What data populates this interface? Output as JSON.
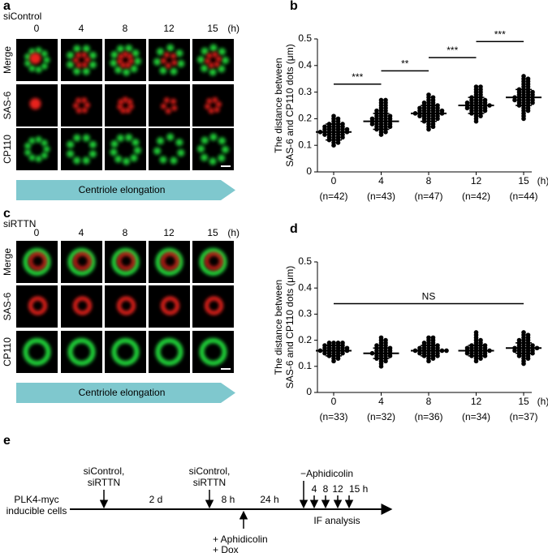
{
  "panel_a": {
    "label": "a",
    "condition": "siControl",
    "timepoints": [
      "0",
      "4",
      "8",
      "12",
      "15"
    ],
    "unit": "(h)",
    "rows": [
      "Merge",
      "SAS-6",
      "CP110"
    ],
    "arrow": "Centriole elongation"
  },
  "panel_c": {
    "label": "c",
    "condition": "siRTTN",
    "timepoints": [
      "0",
      "4",
      "8",
      "12",
      "15"
    ],
    "unit": "(h)",
    "rows": [
      "Merge",
      "SAS-6",
      "CP110"
    ],
    "arrow": "Centriole elongation"
  },
  "chart_data": [
    {
      "panel_label": "b",
      "type": "strip",
      "ylabel": [
        "The distance between",
        "SAS-6 and CP110 dots (μm)"
      ],
      "categories": [
        "0",
        "4",
        "8",
        "12",
        "15"
      ],
      "n_labels": [
        "(n=42)",
        "(n=43)",
        "(n=47)",
        "(n=42)",
        "(n=44)"
      ],
      "x_unit": "(h)",
      "values": [
        [
          0.1,
          0.11,
          0.11,
          0.12,
          0.12,
          0.12,
          0.13,
          0.13,
          0.13,
          0.13,
          0.14,
          0.14,
          0.14,
          0.14,
          0.14,
          0.15,
          0.15,
          0.15,
          0.15,
          0.15,
          0.15,
          0.15,
          0.16,
          0.16,
          0.16,
          0.16,
          0.16,
          0.16,
          0.17,
          0.17,
          0.17,
          0.17,
          0.17,
          0.18,
          0.18,
          0.18,
          0.18,
          0.19,
          0.19,
          0.2,
          0.2,
          0.21
        ],
        [
          0.14,
          0.15,
          0.15,
          0.16,
          0.16,
          0.16,
          0.17,
          0.17,
          0.17,
          0.17,
          0.18,
          0.18,
          0.18,
          0.18,
          0.18,
          0.19,
          0.19,
          0.19,
          0.19,
          0.19,
          0.2,
          0.2,
          0.2,
          0.2,
          0.2,
          0.21,
          0.21,
          0.21,
          0.21,
          0.22,
          0.22,
          0.22,
          0.23,
          0.23,
          0.23,
          0.24,
          0.24,
          0.25,
          0.25,
          0.26,
          0.26,
          0.27,
          0.27
        ],
        [
          0.16,
          0.17,
          0.17,
          0.18,
          0.18,
          0.19,
          0.19,
          0.19,
          0.2,
          0.2,
          0.2,
          0.2,
          0.21,
          0.21,
          0.21,
          0.21,
          0.21,
          0.22,
          0.22,
          0.22,
          0.22,
          0.22,
          0.22,
          0.22,
          0.23,
          0.23,
          0.23,
          0.23,
          0.23,
          0.23,
          0.24,
          0.24,
          0.24,
          0.24,
          0.24,
          0.25,
          0.25,
          0.25,
          0.25,
          0.26,
          0.26,
          0.26,
          0.27,
          0.27,
          0.28,
          0.28,
          0.29
        ],
        [
          0.19,
          0.2,
          0.21,
          0.21,
          0.22,
          0.22,
          0.22,
          0.23,
          0.23,
          0.23,
          0.23,
          0.24,
          0.24,
          0.24,
          0.24,
          0.24,
          0.25,
          0.25,
          0.25,
          0.25,
          0.25,
          0.25,
          0.26,
          0.26,
          0.26,
          0.26,
          0.26,
          0.27,
          0.27,
          0.27,
          0.27,
          0.28,
          0.28,
          0.28,
          0.29,
          0.29,
          0.3,
          0.3,
          0.31,
          0.31,
          0.32,
          0.32
        ],
        [
          0.2,
          0.21,
          0.22,
          0.23,
          0.23,
          0.24,
          0.24,
          0.25,
          0.25,
          0.25,
          0.26,
          0.26,
          0.26,
          0.26,
          0.27,
          0.27,
          0.27,
          0.27,
          0.27,
          0.28,
          0.28,
          0.28,
          0.28,
          0.28,
          0.29,
          0.29,
          0.29,
          0.29,
          0.3,
          0.3,
          0.3,
          0.3,
          0.31,
          0.31,
          0.31,
          0.32,
          0.32,
          0.33,
          0.33,
          0.34,
          0.34,
          0.35,
          0.35,
          0.36
        ]
      ],
      "means": [
        0.15,
        0.19,
        0.22,
        0.25,
        0.28
      ],
      "sds": [
        0.03,
        0.03,
        0.03,
        0.03,
        0.03
      ],
      "ylim": [
        0,
        0.5
      ],
      "yticks": [
        0,
        0.1,
        0.2,
        0.3,
        0.4,
        0.5
      ],
      "point_color": "#000000",
      "significance": [
        {
          "from": "0",
          "to": "4",
          "y": 0.33,
          "label": "***"
        },
        {
          "from": "4",
          "to": "8",
          "y": 0.38,
          "label": "**"
        },
        {
          "from": "8",
          "to": "12",
          "y": 0.43,
          "label": "***"
        },
        {
          "from": "12",
          "to": "15",
          "y": 0.49,
          "label": "***"
        }
      ]
    },
    {
      "panel_label": "d",
      "type": "strip",
      "ylabel": [
        "The distance between",
        "SAS-6 and CP110 dots (μm)"
      ],
      "categories": [
        "0",
        "4",
        "8",
        "12",
        "15"
      ],
      "n_labels": [
        "(n=33)",
        "(n=32)",
        "(n=36)",
        "(n=34)",
        "(n=37)"
      ],
      "x_unit": "(h)",
      "values": [
        [
          0.12,
          0.13,
          0.13,
          0.14,
          0.14,
          0.14,
          0.15,
          0.15,
          0.15,
          0.15,
          0.15,
          0.16,
          0.16,
          0.16,
          0.16,
          0.16,
          0.16,
          0.16,
          0.17,
          0.17,
          0.17,
          0.17,
          0.17,
          0.17,
          0.18,
          0.18,
          0.18,
          0.18,
          0.18,
          0.19,
          0.19,
          0.19,
          0.19
        ],
        [
          0.1,
          0.11,
          0.12,
          0.12,
          0.13,
          0.13,
          0.13,
          0.14,
          0.14,
          0.14,
          0.14,
          0.15,
          0.15,
          0.15,
          0.15,
          0.15,
          0.16,
          0.16,
          0.16,
          0.16,
          0.17,
          0.17,
          0.17,
          0.17,
          0.18,
          0.18,
          0.18,
          0.19,
          0.19,
          0.2,
          0.2,
          0.21
        ],
        [
          0.12,
          0.13,
          0.13,
          0.14,
          0.14,
          0.14,
          0.15,
          0.15,
          0.15,
          0.15,
          0.15,
          0.16,
          0.16,
          0.16,
          0.16,
          0.16,
          0.16,
          0.16,
          0.17,
          0.17,
          0.17,
          0.17,
          0.17,
          0.18,
          0.18,
          0.18,
          0.18,
          0.19,
          0.19,
          0.19,
          0.2,
          0.2,
          0.21,
          0.21,
          0.14,
          0.16
        ],
        [
          0.12,
          0.13,
          0.13,
          0.14,
          0.14,
          0.14,
          0.15,
          0.15,
          0.15,
          0.15,
          0.15,
          0.16,
          0.16,
          0.16,
          0.16,
          0.16,
          0.16,
          0.17,
          0.17,
          0.17,
          0.17,
          0.17,
          0.18,
          0.18,
          0.18,
          0.18,
          0.19,
          0.19,
          0.2,
          0.2,
          0.21,
          0.22,
          0.23,
          0.14
        ],
        [
          0.11,
          0.12,
          0.13,
          0.13,
          0.14,
          0.14,
          0.14,
          0.15,
          0.15,
          0.15,
          0.15,
          0.16,
          0.16,
          0.16,
          0.16,
          0.16,
          0.17,
          0.17,
          0.17,
          0.17,
          0.17,
          0.17,
          0.18,
          0.18,
          0.18,
          0.18,
          0.19,
          0.19,
          0.19,
          0.2,
          0.2,
          0.2,
          0.21,
          0.21,
          0.22,
          0.22,
          0.23
        ]
      ],
      "means": [
        0.16,
        0.15,
        0.16,
        0.16,
        0.17
      ],
      "sds": [
        0.02,
        0.02,
        0.02,
        0.02,
        0.02
      ],
      "ylim": [
        0,
        0.5
      ],
      "yticks": [
        0,
        0.1,
        0.2,
        0.3,
        0.4,
        0.5
      ],
      "point_color": "#000000",
      "significance": [
        {
          "from": "0",
          "to": "15",
          "y": 0.34,
          "label": "NS"
        }
      ]
    }
  ],
  "panel_e": {
    "label": "e",
    "cells": [
      "PLK4-myc",
      "inducible cells"
    ],
    "transfection_1": [
      "siControl,",
      "siRTTN"
    ],
    "interval_1": "2 d",
    "transfection_2": [
      "siControl,",
      "siRTTN"
    ],
    "interval_2": "8 h",
    "treatment": [
      "+ Aphidicolin",
      "+ Dox"
    ],
    "interval_3": "24 h",
    "release": "−Aphidicolin",
    "timepoints": [
      "4",
      "8",
      "12",
      "15 h"
    ],
    "readout": "IF analysis"
  }
}
